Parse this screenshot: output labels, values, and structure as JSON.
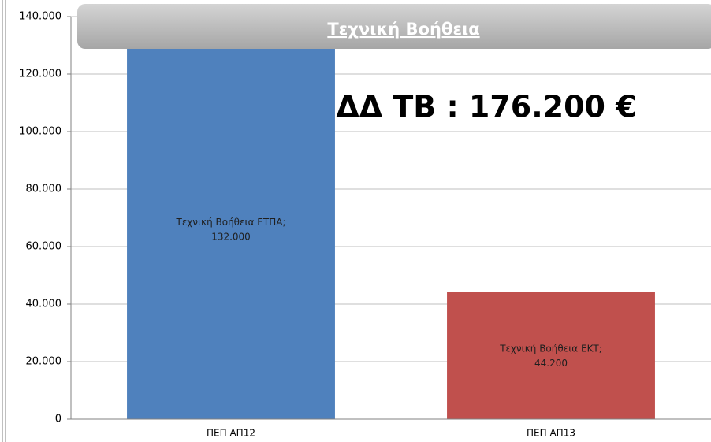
{
  "chart_data": {
    "type": "bar",
    "title": "Τεχνική Βοήθεια",
    "annotation": "ΔΔ ΤΒ : 176.200 €",
    "categories": [
      "ΠΕΠ ΑΠ12",
      "ΠΕΠ ΑΠ13"
    ],
    "point_names": [
      "Τεχνική Βοήθεια ΕΤΠΑ",
      "Τεχνική Βοήθεια ΕΚΤ"
    ],
    "label_separator": ";",
    "values": [
      132000,
      44200
    ],
    "value_labels": [
      "132.000",
      "44.200"
    ],
    "colors": [
      "#4f81bd",
      "#c0504d"
    ],
    "ylim": [
      0,
      140000
    ],
    "yticks": [
      0,
      {
        "value": 20000,
        "label": "20.000"
      },
      {
        "value": 40000,
        "label": "40.000"
      },
      {
        "value": 60000,
        "label": "60.000"
      },
      {
        "value": 80000,
        "label": "80.000"
      },
      {
        "value": 100000,
        "label": "100.000"
      },
      {
        "value": 120000,
        "label": "120.000"
      },
      {
        "value": 140000,
        "label": "140.000"
      }
    ],
    "grid": true
  }
}
